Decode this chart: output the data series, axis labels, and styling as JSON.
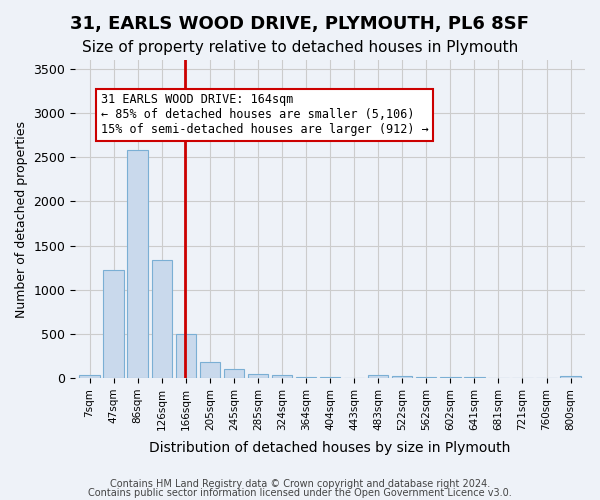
{
  "title1": "31, EARLS WOOD DRIVE, PLYMOUTH, PL6 8SF",
  "title2": "Size of property relative to detached houses in Plymouth",
  "xlabel": "Distribution of detached houses by size in Plymouth",
  "ylabel": "Number of detached properties",
  "bin_labels": [
    "7sqm",
    "47sqm",
    "86sqm",
    "126sqm",
    "166sqm",
    "205sqm",
    "245sqm",
    "285sqm",
    "324sqm",
    "364sqm",
    "404sqm",
    "443sqm",
    "483sqm",
    "522sqm",
    "562sqm",
    "602sqm",
    "641sqm",
    "681sqm",
    "721sqm",
    "760sqm",
    "800sqm"
  ],
  "bar_values": [
    30,
    1220,
    2580,
    1340,
    500,
    185,
    100,
    50,
    35,
    10,
    10,
    5,
    30,
    20,
    15,
    10,
    8,
    5,
    5,
    5,
    20
  ],
  "bar_color": "#c9d9ec",
  "bar_edgecolor": "#7bafd4",
  "vline_color": "#cc0000",
  "annotation_text": "31 EARLS WOOD DRIVE: 164sqm\n← 85% of detached houses are smaller (5,106)\n15% of semi-detached houses are larger (912) →",
  "annotation_box_color": "#ffffff",
  "annotation_box_edgecolor": "#cc0000",
  "ylim": [
    0,
    3600
  ],
  "yticks": [
    0,
    500,
    1000,
    1500,
    2000,
    2500,
    3000,
    3500
  ],
  "background_color": "#eef2f8",
  "footer1": "Contains HM Land Registry data © Crown copyright and database right 2024.",
  "footer2": "Contains public sector information licensed under the Open Government Licence v3.0.",
  "title1_fontsize": 13,
  "title2_fontsize": 11,
  "vline_pos": 3.97
}
